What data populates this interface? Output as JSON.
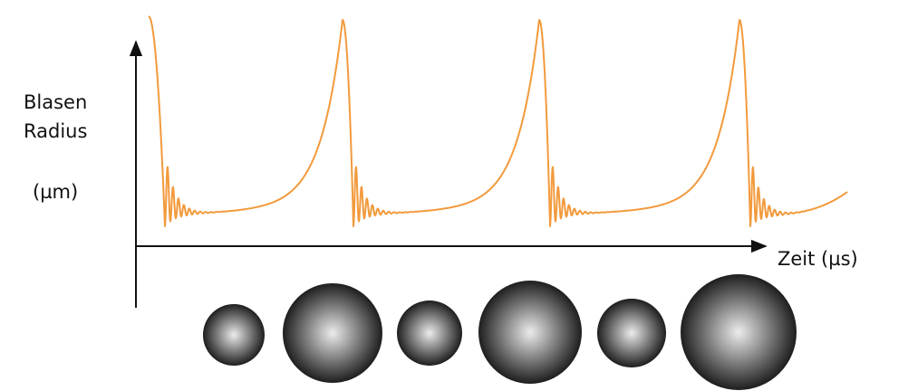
{
  "y_axis_label": {
    "lines": [
      "Blasen",
      "Radius"
    ],
    "unit": "(µm)"
  },
  "x_axis_label": "Zeit (µs)"
}
